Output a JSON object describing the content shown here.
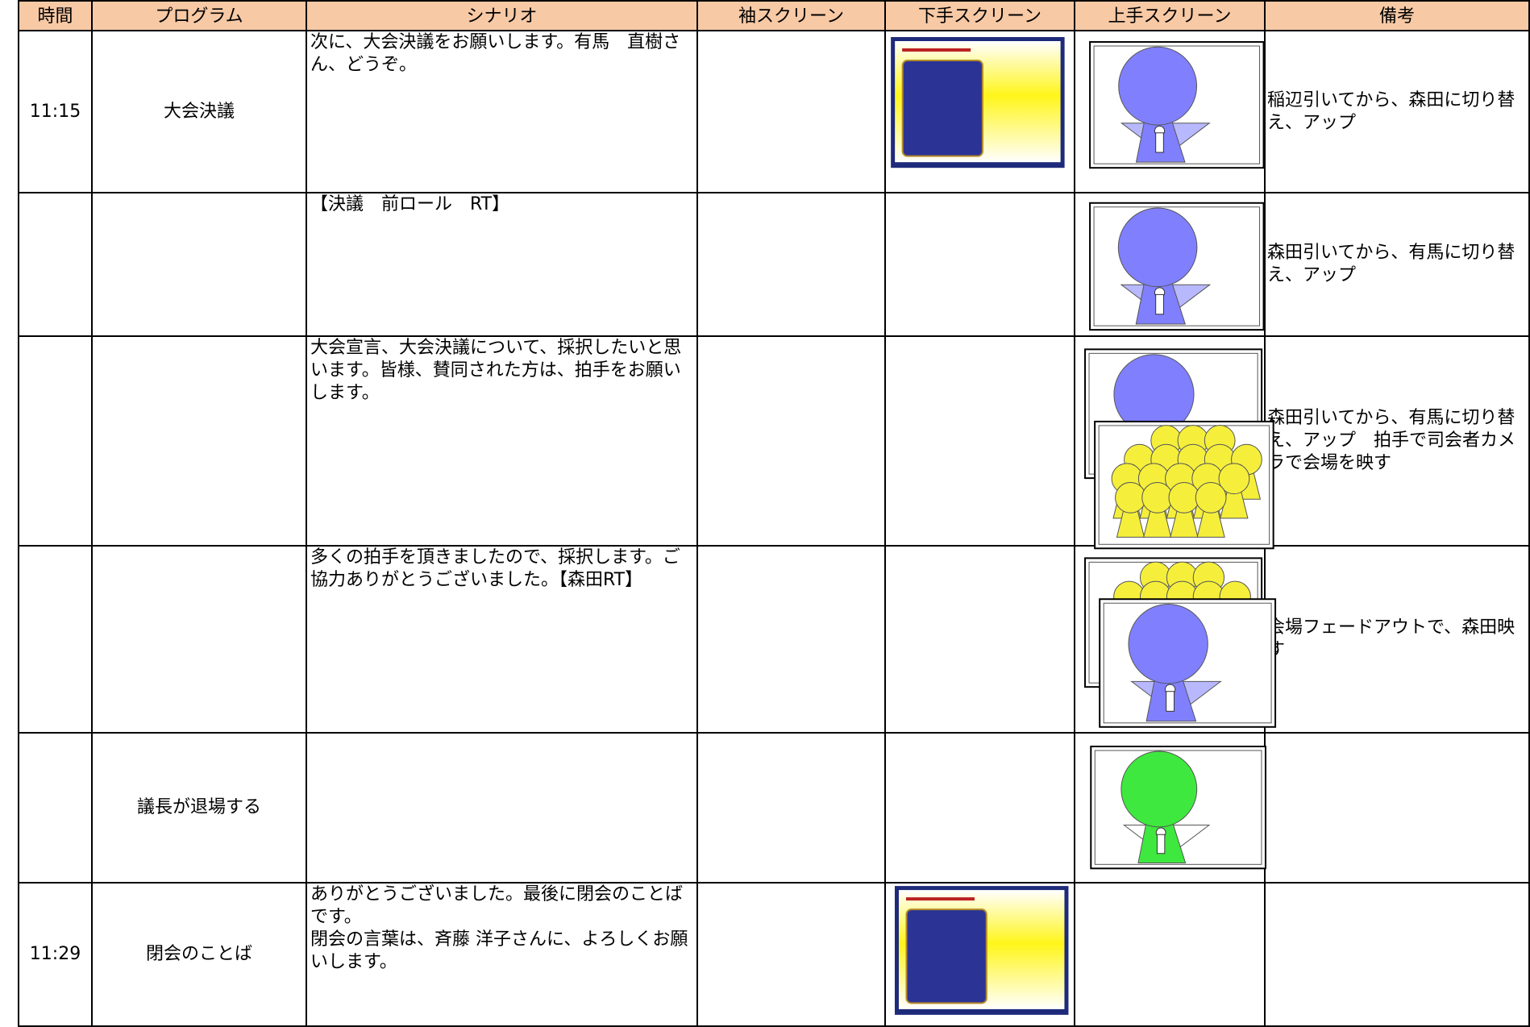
{
  "header": [
    "時間",
    "プログラム",
    "シナリオ",
    "袖スクリーン",
    "下手スクリーン",
    "上手スクリーン",
    "備考"
  ],
  "rows": [
    {
      "time": "11:15",
      "program": "大会決議",
      "scenario": [
        "次に、大会決議をお願いします。有馬　直樹さん、どうぞ。"
      ],
      "remarks": "稲辺引いてから、森田に切り替え、アップ"
    },
    {
      "scenario": [
        "【決議　前ロール　RT】"
      ],
      "remarks": "森田引いてから、有馬に切り替え、アップ"
    },
    {
      "scenario": [
        "大会宣言、大会決議について、採択したいと思います。皆様、賛同された方は、拍手をお願いします。"
      ],
      "remarks": "森田引いてから、有馬に切り替え、アップ　拍手で司会者カメラで会場を映す"
    },
    {
      "scenario": [
        "多くの拍手を頂きましたので、採択します。ご協力ありがとうございました。【森田RT】"
      ],
      "remarks": "会場フェードアウトで、森田映す"
    },
    {
      "program": "議長が退場する"
    },
    {
      "time": "11:29",
      "program": "閉会のことば",
      "scenario": [
        "ありがとうございました。最後に閉会のことばです。",
        "閉会の言葉は、斉藤 洋子さんに、よろしくお願いします。"
      ]
    }
  ]
}
